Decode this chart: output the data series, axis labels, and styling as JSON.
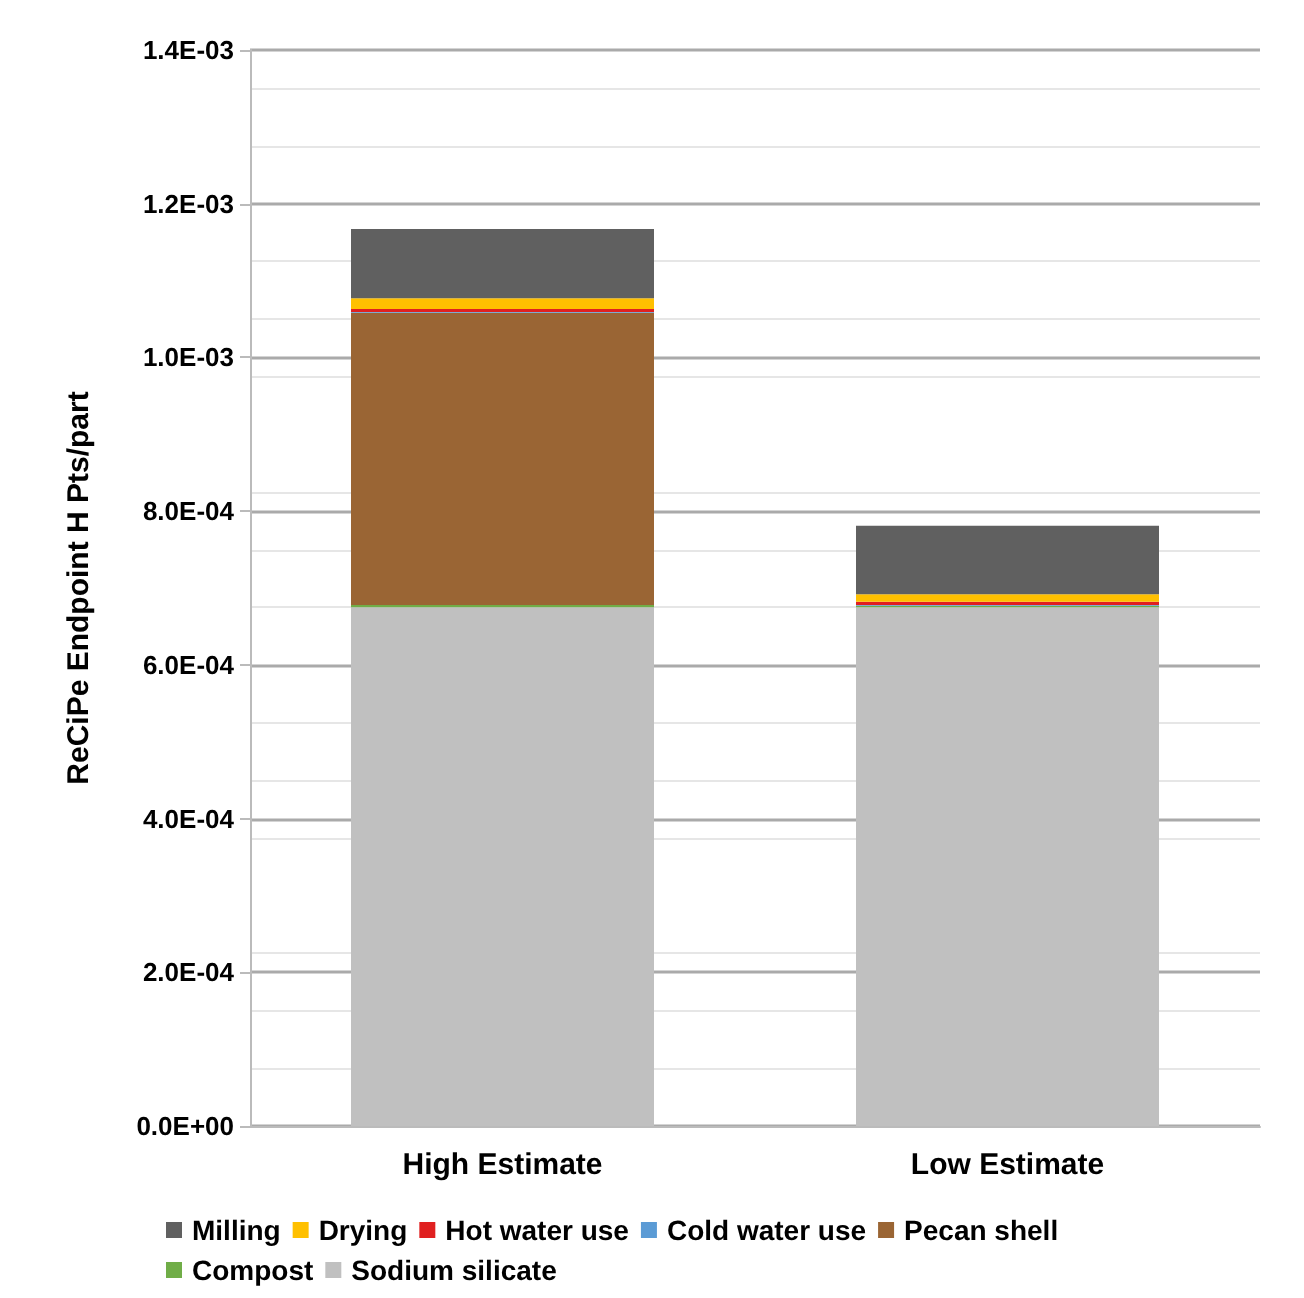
{
  "chart_data": {
    "type": "bar",
    "stacked": true,
    "ylabel": "ReCiPe Endpoint H Pts/part",
    "categories": [
      "High Estimate",
      "Low Estimate"
    ],
    "series": [
      {
        "name": "Sodium silicate",
        "color": "#c0c0c0",
        "values": [
          0.000675,
          0.000675
        ]
      },
      {
        "name": "Compost",
        "color": "#70ad47",
        "values": [
          3e-06,
          2e-06
        ]
      },
      {
        "name": "Pecan shell",
        "color": "#9a6534",
        "values": [
          0.00038,
          0
        ]
      },
      {
        "name": "Cold water use",
        "color": "#5b9bd5",
        "values": [
          1e-06,
          1e-06
        ]
      },
      {
        "name": "Hot water use",
        "color": "#e02020",
        "values": [
          4e-06,
          4e-06
        ]
      },
      {
        "name": "Drying",
        "color": "#ffc000",
        "values": [
          1.4e-05,
          1e-05
        ]
      },
      {
        "name": "Milling",
        "color": "#606060",
        "values": [
          9e-05,
          8.9e-05
        ]
      }
    ],
    "ylim": [
      0,
      0.0014
    ],
    "yticks": [
      {
        "value": 0,
        "label": "0.0E+00"
      },
      {
        "value": 0.0002,
        "label": "2.0E-04"
      },
      {
        "value": 0.0004,
        "label": "4.0E-04"
      },
      {
        "value": 0.0006,
        "label": "6.0E-04"
      },
      {
        "value": 0.0008,
        "label": "8.0E-04"
      },
      {
        "value": 0.001,
        "label": "1.0E-03"
      },
      {
        "value": 0.0012,
        "label": "1.2E-03"
      },
      {
        "value": 0.0014,
        "label": "1.4E-03"
      }
    ],
    "grid": "y",
    "legend": "bottom"
  }
}
